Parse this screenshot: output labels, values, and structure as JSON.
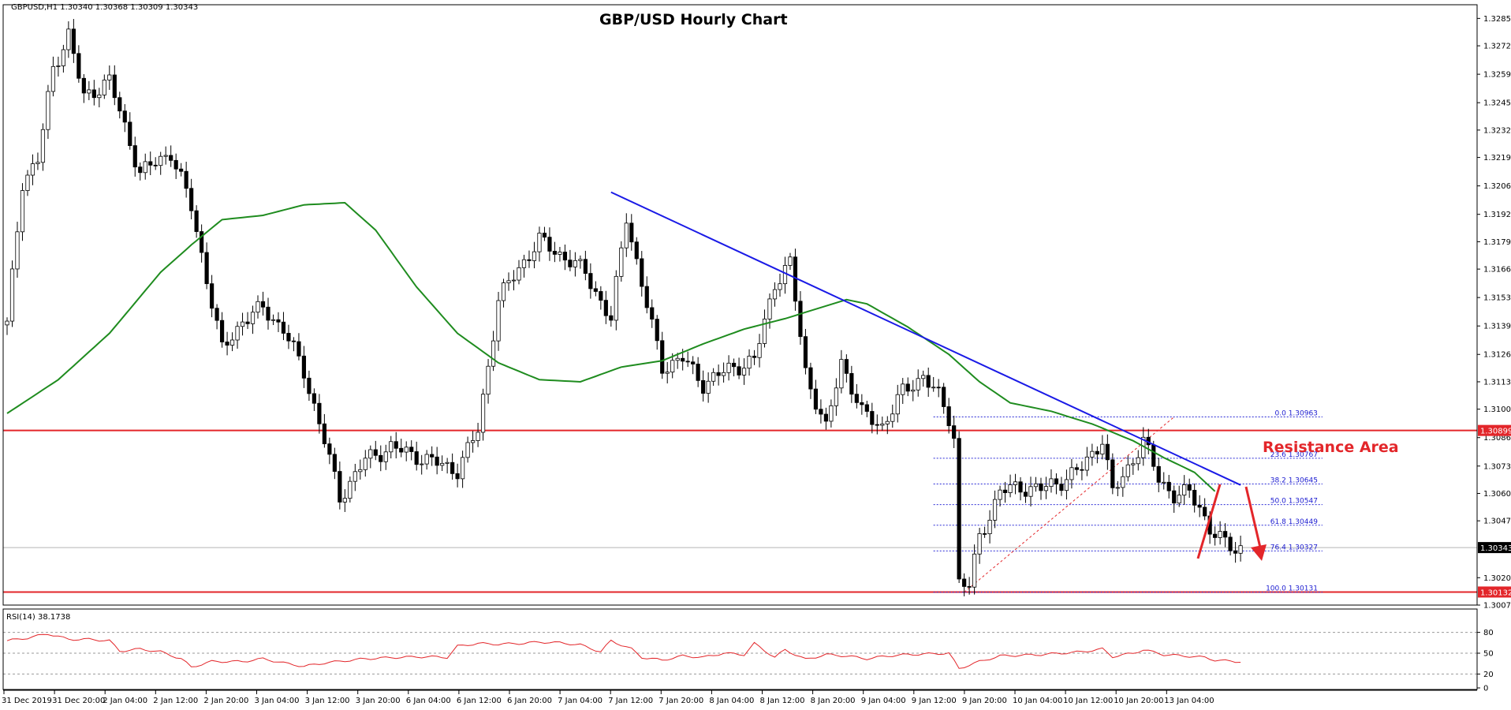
{
  "header": {
    "symbol_info": "GBPUSD,H1  1.30340 1.30368 1.30309 1.30343",
    "title": "GBP/USD Hourly Chart"
  },
  "annotations": {
    "resistance_label": "Resistance Area"
  },
  "colors": {
    "bull_candle": "#ffffff",
    "bear_candle": "#000000",
    "moving_average": "#1f8c1f",
    "trendline": "#1a1ae6",
    "horizontal_levels": "#e3262a",
    "fibonacci": "#2b2bd6",
    "rsi_line": "#e3262a",
    "arrows": "#e3262a"
  },
  "chart_data": [
    {
      "type": "candlestick",
      "title": "GBP/USD Hourly Chart",
      "symbol": "GBPUSD,H1",
      "ohlc_header": {
        "open": 1.3034,
        "high": 1.30368,
        "low": 1.30309,
        "close": 1.30343
      },
      "ylim": [
        1.3007,
        1.3292
      ],
      "y_ticks": [
        "1.32855",
        "1.32725",
        "1.32590",
        "1.32455",
        "1.32325",
        "1.32195",
        "1.32060",
        "1.31925",
        "1.31795",
        "1.31665",
        "1.31530",
        "1.31395",
        "1.31260",
        "1.31130",
        "1.31000",
        "1.30865",
        "1.30730",
        "1.30600",
        "1.30470",
        "1.30200",
        "1.30070"
      ],
      "x_ticks": [
        "31 Dec 2019",
        "31 Dec 20:00",
        "2 Jan 04:00",
        "2 Jan 12:00",
        "2 Jan 20:00",
        "3 Jan 04:00",
        "3 Jan 12:00",
        "3 Jan 20:00",
        "6 Jan 04:00",
        "6 Jan 12:00",
        "6 Jan 20:00",
        "7 Jan 04:00",
        "7 Jan 12:00",
        "7 Jan 20:00",
        "8 Jan 04:00",
        "8 Jan 12:00",
        "8 Jan 20:00",
        "9 Jan 04:00",
        "9 Jan 12:00",
        "9 Jan 20:00",
        "10 Jan 04:00",
        "10 Jan 12:00",
        "10 Jan 20:00",
        "13 Jan 04:00"
      ],
      "anchor_closes": [
        [
          0,
          1.314
        ],
        [
          3,
          1.3208
        ],
        [
          6,
          1.3218
        ],
        [
          9,
          1.3262
        ],
        [
          12,
          1.3278
        ],
        [
          15,
          1.3248
        ],
        [
          20,
          1.3256
        ],
        [
          26,
          1.3212
        ],
        [
          32,
          1.3222
        ],
        [
          36,
          1.3196
        ],
        [
          42,
          1.3128
        ],
        [
          46,
          1.3142
        ],
        [
          50,
          1.3148
        ],
        [
          54,
          1.3138
        ],
        [
          58,
          1.3118
        ],
        [
          62,
          1.3085
        ],
        [
          65,
          1.3058
        ],
        [
          70,
          1.3076
        ],
        [
          75,
          1.3082
        ],
        [
          82,
          1.3076
        ],
        [
          88,
          1.3071
        ],
        [
          92,
          1.309
        ],
        [
          96,
          1.3152
        ],
        [
          100,
          1.3167
        ],
        [
          104,
          1.318
        ],
        [
          109,
          1.3172
        ],
        [
          113,
          1.3165
        ],
        [
          118,
          1.3142
        ],
        [
          121,
          1.3192
        ],
        [
          124,
          1.3159
        ],
        [
          128,
          1.312
        ],
        [
          132,
          1.3124
        ],
        [
          136,
          1.3112
        ],
        [
          141,
          1.3119
        ],
        [
          146,
          1.3123
        ],
        [
          150,
          1.316
        ],
        [
          153,
          1.3169
        ],
        [
          156,
          1.3118
        ],
        [
          160,
          1.309
        ],
        [
          163,
          1.3123
        ],
        [
          167,
          1.3098
        ],
        [
          171,
          1.3092
        ],
        [
          175,
          1.3108
        ],
        [
          179,
          1.3116
        ],
        [
          182,
          1.3106
        ],
        [
          184,
          1.3096
        ],
        [
          185,
          1.3087
        ],
        [
          186,
          1.3018
        ],
        [
          188,
          1.3016
        ],
        [
          190,
          1.3039
        ],
        [
          194,
          1.3061
        ],
        [
          198,
          1.3063
        ],
        [
          202,
          1.3062
        ],
        [
          206,
          1.3066
        ],
        [
          210,
          1.3072
        ],
        [
          214,
          1.3086
        ],
        [
          216,
          1.306
        ],
        [
          219,
          1.3072
        ],
        [
          222,
          1.3085
        ],
        [
          225,
          1.3067
        ],
        [
          228,
          1.3059
        ],
        [
          231,
          1.306
        ],
        [
          233,
          1.3054
        ],
        [
          235,
          1.3043
        ],
        [
          238,
          1.3036
        ],
        [
          240,
          1.3034
        ],
        [
          241,
          1.30343
        ]
      ],
      "moving_average": {
        "name": "",
        "anchors": [
          [
            0,
            1.3098
          ],
          [
            10,
            1.3114
          ],
          [
            20,
            1.3136
          ],
          [
            30,
            1.3165
          ],
          [
            36,
            1.3178
          ],
          [
            42,
            1.319
          ],
          [
            50,
            1.3192
          ],
          [
            58,
            1.3197
          ],
          [
            66,
            1.3198
          ],
          [
            72,
            1.3185
          ],
          [
            80,
            1.3158
          ],
          [
            88,
            1.3136
          ],
          [
            96,
            1.3122
          ],
          [
            104,
            1.3114
          ],
          [
            112,
            1.3113
          ],
          [
            120,
            1.312
          ],
          [
            128,
            1.3123
          ],
          [
            136,
            1.3131
          ],
          [
            144,
            1.3138
          ],
          [
            152,
            1.3143
          ],
          [
            160,
            1.3149
          ],
          [
            164,
            1.3152
          ],
          [
            168,
            1.315
          ],
          [
            176,
            1.3139
          ],
          [
            184,
            1.3126
          ],
          [
            190,
            1.3113
          ],
          [
            196,
            1.3103
          ],
          [
            204,
            1.3099
          ],
          [
            212,
            1.3093
          ],
          [
            220,
            1.3085
          ],
          [
            226,
            1.3077
          ],
          [
            232,
            1.307
          ],
          [
            236,
            1.3061
          ]
        ]
      },
      "trendline": {
        "points": [
          [
            118,
            1.3203
          ],
          [
            241,
            1.3064
          ]
        ]
      },
      "horizontal_levels": [
        {
          "label": "1.30899",
          "value": 1.30899
        },
        {
          "label": "1.30132",
          "value": 1.30132
        }
      ],
      "fibonacci": {
        "start_bar": 181,
        "end_bar": 257,
        "levels": [
          {
            "label": "0.0  1.30963",
            "value": 1.30963
          },
          {
            "label": "23.6  1.30767",
            "value": 1.30767
          },
          {
            "label": "38.2  1.30645",
            "value": 1.30645
          },
          {
            "label": "50.0  1.30547",
            "value": 1.30547
          },
          {
            "label": "61.8  1.30449",
            "value": 1.30449
          },
          {
            "label": "76.4  1.30327",
            "value": 1.30327
          },
          {
            "label": "100.0  1.30131",
            "value": 1.30131
          }
        ]
      },
      "current_price": {
        "label": "1.30343",
        "value": 1.30343
      },
      "level_labels": [
        "1.30899",
        "1.30132"
      ]
    },
    {
      "type": "line",
      "title": "RSI(14) 38.1738",
      "ylim": [
        0,
        100
      ],
      "y_ticks": [
        "80",
        "50",
        "20",
        "0"
      ],
      "levels": [
        80,
        50,
        20
      ],
      "anchors": [
        [
          0,
          68
        ],
        [
          4,
          72
        ],
        [
          8,
          78
        ],
        [
          12,
          70
        ],
        [
          16,
          70
        ],
        [
          20,
          68
        ],
        [
          22,
          53
        ],
        [
          26,
          56
        ],
        [
          30,
          52
        ],
        [
          34,
          42
        ],
        [
          36,
          30
        ],
        [
          40,
          38
        ],
        [
          46,
          38
        ],
        [
          50,
          42
        ],
        [
          54,
          36
        ],
        [
          58,
          31
        ],
        [
          62,
          36
        ],
        [
          66,
          39
        ],
        [
          70,
          42
        ],
        [
          76,
          44
        ],
        [
          82,
          45
        ],
        [
          86,
          44
        ],
        [
          88,
          60
        ],
        [
          92,
          64
        ],
        [
          96,
          63
        ],
        [
          100,
          64
        ],
        [
          104,
          66
        ],
        [
          108,
          65
        ],
        [
          112,
          62
        ],
        [
          116,
          52
        ],
        [
          118,
          68
        ],
        [
          122,
          56
        ],
        [
          124,
          44
        ],
        [
          128,
          40
        ],
        [
          132,
          46
        ],
        [
          136,
          44
        ],
        [
          140,
          50
        ],
        [
          144,
          48
        ],
        [
          146,
          64
        ],
        [
          150,
          44
        ],
        [
          152,
          55
        ],
        [
          156,
          41
        ],
        [
          160,
          48
        ],
        [
          164,
          46
        ],
        [
          168,
          42
        ],
        [
          172,
          46
        ],
        [
          176,
          48
        ],
        [
          180,
          49
        ],
        [
          184,
          50
        ],
        [
          186,
          28
        ],
        [
          190,
          38
        ],
        [
          194,
          46
        ],
        [
          198,
          47
        ],
        [
          202,
          48
        ],
        [
          206,
          50
        ],
        [
          210,
          52
        ],
        [
          214,
          56
        ],
        [
          216,
          45
        ],
        [
          220,
          50
        ],
        [
          222,
          55
        ],
        [
          226,
          48
        ],
        [
          230,
          46
        ],
        [
          234,
          44
        ],
        [
          236,
          40
        ],
        [
          240,
          38
        ],
        [
          241,
          38.1738
        ]
      ]
    }
  ]
}
